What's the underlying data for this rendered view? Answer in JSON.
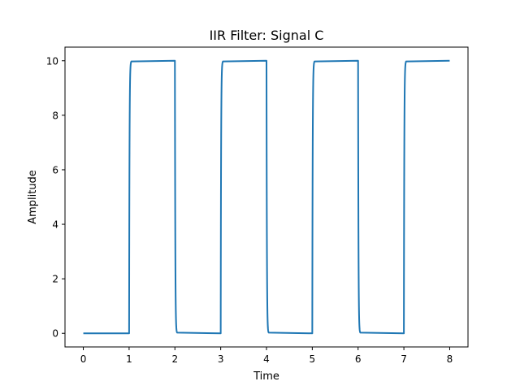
{
  "chart_data": {
    "type": "line",
    "title": "IIR Filter: Signal C",
    "xlabel": "Time",
    "ylabel": "Amplitude",
    "xlim": [
      -0.4,
      8.4
    ],
    "ylim": [
      -0.5,
      10.5
    ],
    "xticks": [
      0,
      1,
      2,
      3,
      4,
      5,
      6,
      7,
      8
    ],
    "yticks": [
      0,
      2,
      4,
      6,
      8,
      10
    ],
    "grid": false,
    "line_color": "#1f77b4",
    "rise_time_constant": 0.008,
    "high_level": 10,
    "low_level": 0,
    "transitions": [
      {
        "t": 1,
        "to": 10
      },
      {
        "t": 2,
        "to": 0
      },
      {
        "t": 3,
        "to": 10
      },
      {
        "t": 4,
        "to": 0
      },
      {
        "t": 5,
        "to": 10
      },
      {
        "t": 6,
        "to": 0
      },
      {
        "t": 7,
        "to": 10
      }
    ],
    "x_range": [
      0,
      8
    ]
  }
}
